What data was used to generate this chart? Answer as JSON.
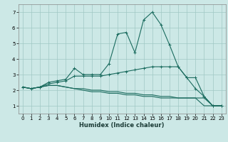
{
  "xlabel": "Humidex (Indice chaleur)",
  "xlim": [
    -0.5,
    23.5
  ],
  "ylim": [
    0.5,
    7.5
  ],
  "xticks": [
    0,
    1,
    2,
    3,
    4,
    5,
    6,
    7,
    8,
    9,
    10,
    11,
    12,
    13,
    14,
    15,
    16,
    17,
    18,
    19,
    20,
    21,
    22,
    23
  ],
  "yticks": [
    1,
    2,
    3,
    4,
    5,
    6,
    7
  ],
  "bg_color": "#cce8e6",
  "grid_color": "#a0c8c4",
  "line_color": "#1a6b5e",
  "line1_y": [
    2.2,
    2.1,
    2.2,
    2.5,
    2.6,
    2.7,
    3.4,
    3.0,
    3.0,
    3.0,
    3.7,
    5.6,
    5.7,
    4.4,
    6.5,
    7.0,
    6.2,
    4.9,
    3.5,
    2.8,
    2.8,
    1.6,
    1.0,
    1.0
  ],
  "line2_y": [
    2.2,
    2.1,
    2.2,
    2.4,
    2.5,
    2.6,
    2.9,
    2.9,
    2.9,
    2.9,
    3.0,
    3.1,
    3.2,
    3.3,
    3.4,
    3.5,
    3.5,
    3.5,
    3.5,
    2.8,
    2.1,
    1.6,
    1.0,
    1.0
  ],
  "line3_y": [
    2.2,
    2.1,
    2.2,
    2.3,
    2.3,
    2.2,
    2.1,
    2.0,
    1.9,
    1.9,
    1.8,
    1.8,
    1.7,
    1.7,
    1.6,
    1.6,
    1.5,
    1.5,
    1.5,
    1.5,
    1.5,
    1.5,
    1.0,
    1.0
  ],
  "line4_y": [
    2.2,
    2.1,
    2.2,
    2.3,
    2.3,
    2.2,
    2.1,
    2.1,
    2.0,
    2.0,
    1.9,
    1.9,
    1.8,
    1.8,
    1.7,
    1.7,
    1.6,
    1.6,
    1.5,
    1.5,
    1.5,
    1.0,
    1.0,
    1.0
  ]
}
